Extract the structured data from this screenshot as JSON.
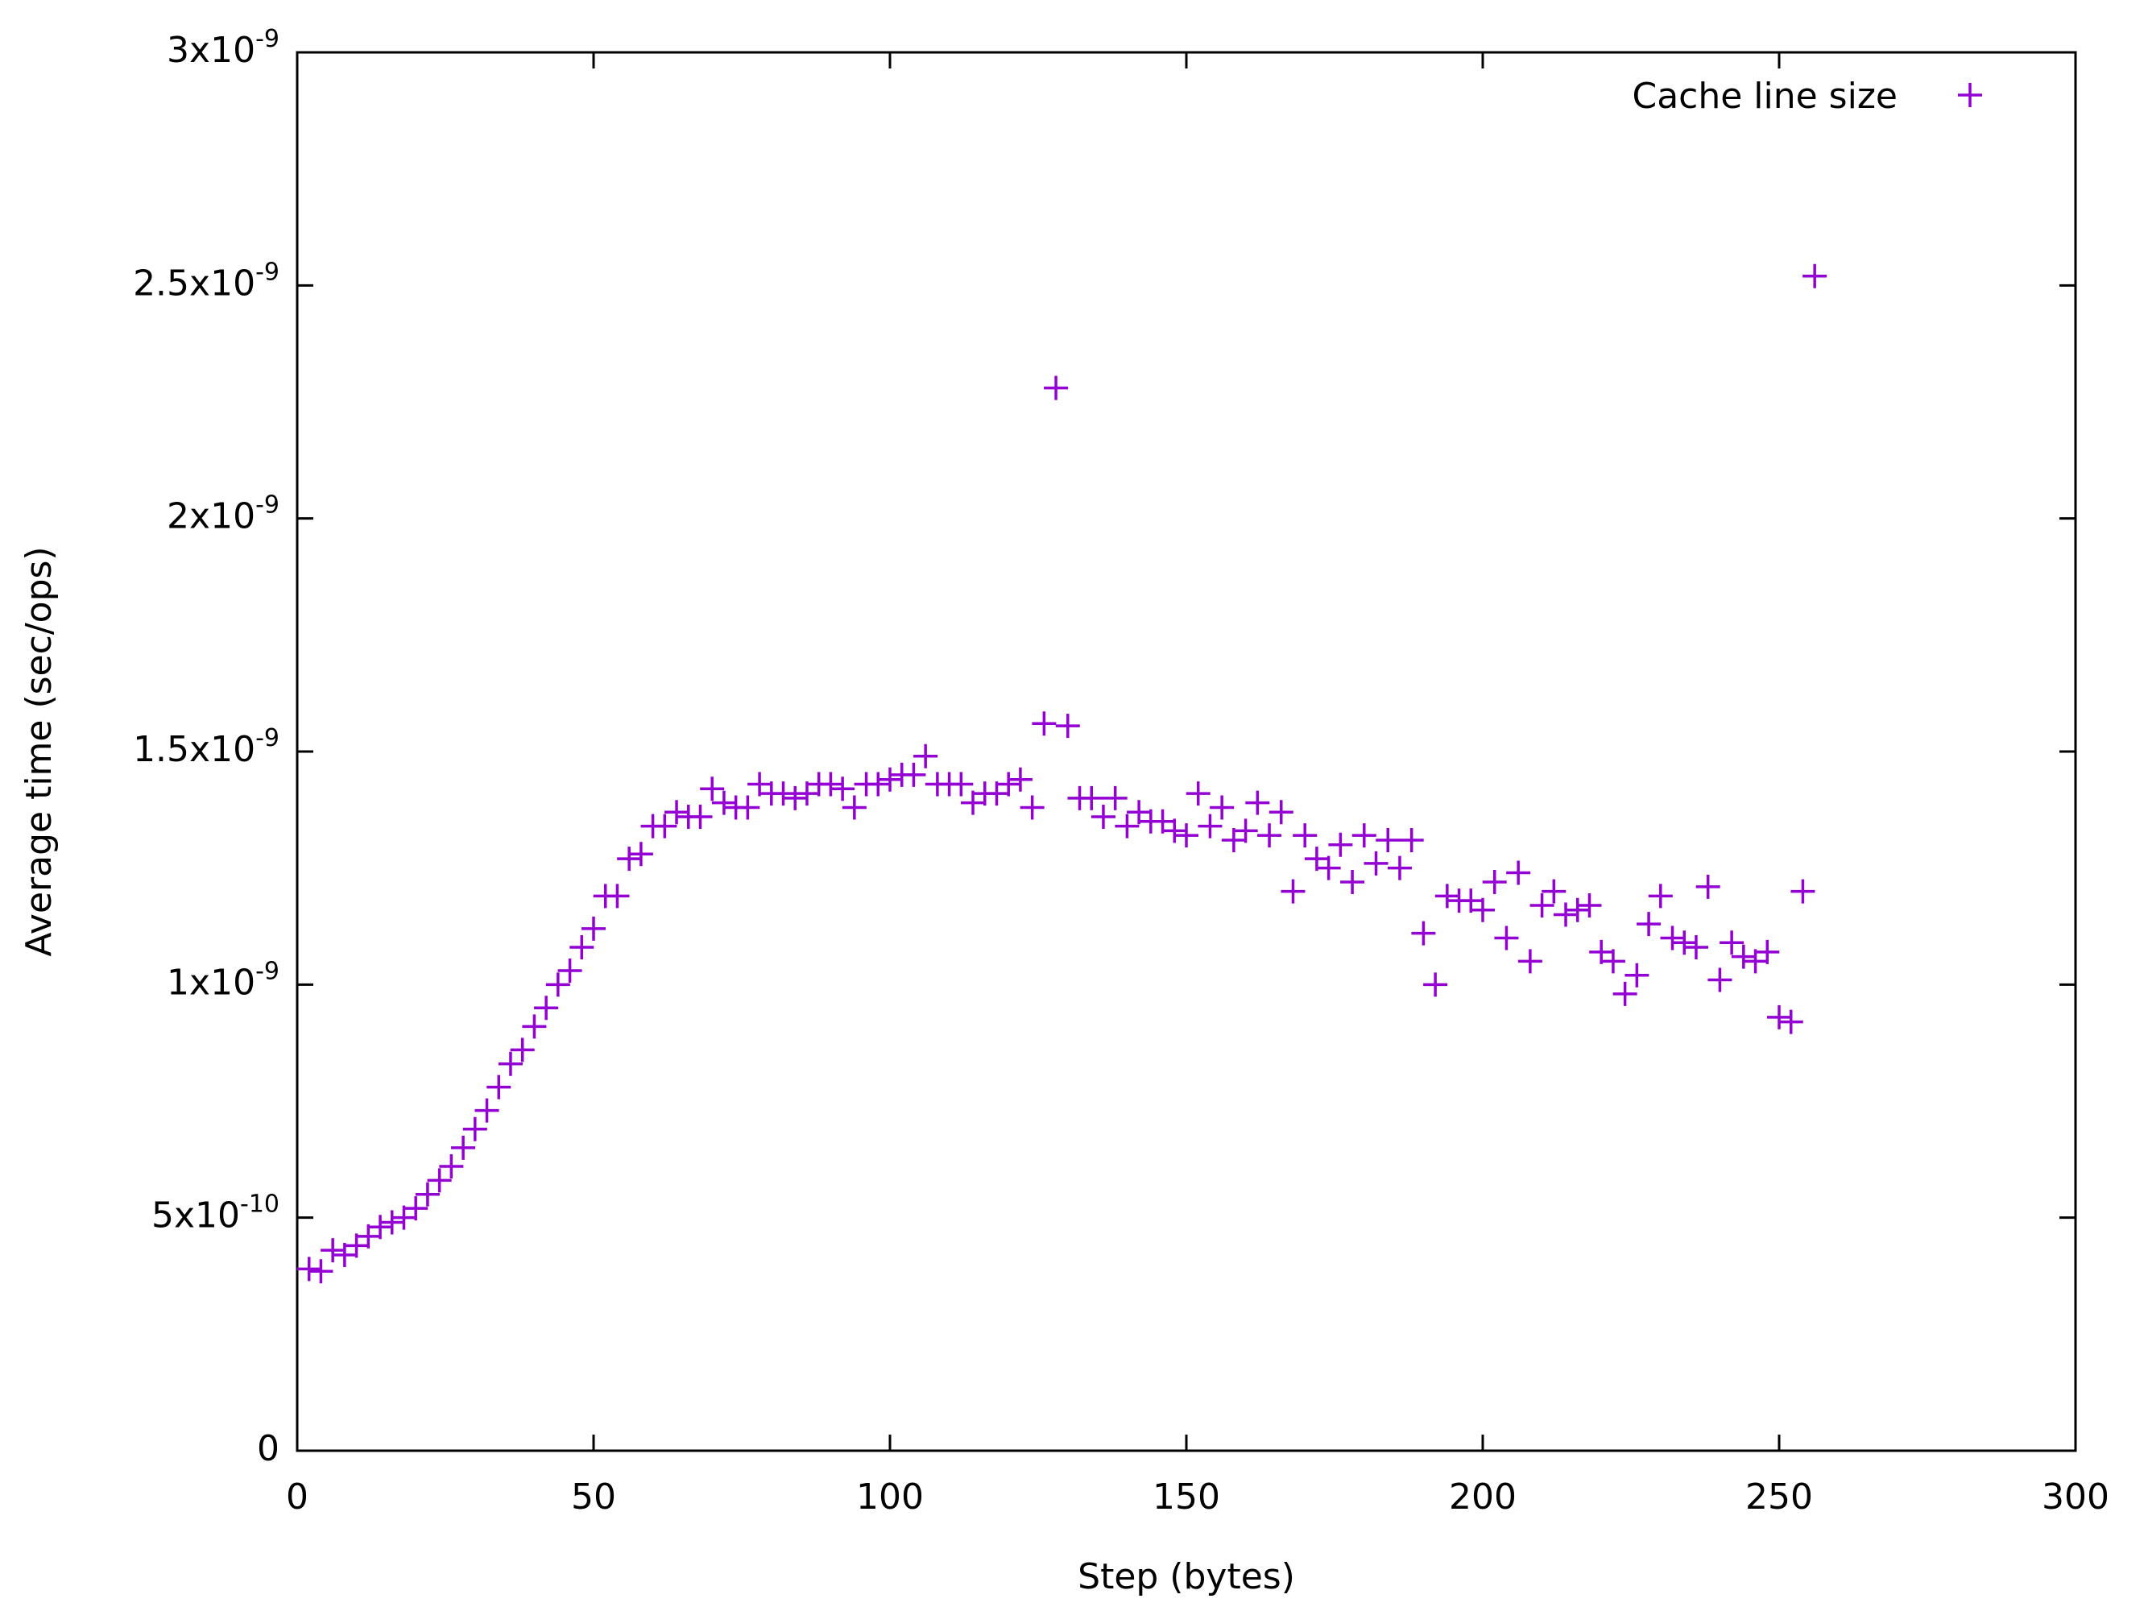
{
  "chart_data": {
    "type": "scatter",
    "x_label": "Step (bytes)",
    "y_label": "Average time (sec/ops)",
    "xlim": [
      0,
      300
    ],
    "xticks": [
      0,
      50,
      100,
      150,
      200,
      250,
      300
    ],
    "ylim": [
      0,
      3e-09
    ],
    "yticks": [
      0,
      {
        "value": 5e-10,
        "label": "5x10-10"
      },
      {
        "value": 1e-09,
        "label": "1x10-9"
      },
      {
        "value": 1.5e-09,
        "label": "1.5x10-9"
      },
      {
        "value": 2e-09,
        "label": "2x10-9"
      },
      {
        "value": 2.5e-09,
        "label": "2.5x10-9"
      },
      {
        "value": 3e-09,
        "label": "3x10-9"
      }
    ],
    "legend_position": "upper right",
    "marker": "+",
    "series": [
      {
        "name": "Cache line size",
        "color": "#9400d3",
        "x": [
          2,
          4,
          6,
          8,
          10,
          12,
          14,
          16,
          18,
          20,
          22,
          24,
          26,
          28,
          30,
          32,
          34,
          36,
          38,
          40,
          42,
          44,
          46,
          48,
          50,
          52,
          54,
          56,
          58,
          60,
          62,
          64,
          66,
          68,
          70,
          72,
          74,
          76,
          78,
          80,
          82,
          84,
          86,
          88,
          90,
          92,
          94,
          96,
          98,
          100,
          102,
          104,
          106,
          108,
          110,
          112,
          114,
          116,
          118,
          120,
          122,
          124,
          126,
          128,
          130,
          132,
          134,
          136,
          138,
          140,
          142,
          144,
          146,
          148,
          150,
          152,
          154,
          156,
          158,
          160,
          162,
          164,
          166,
          168,
          170,
          172,
          174,
          176,
          178,
          180,
          182,
          184,
          186,
          188,
          190,
          192,
          194,
          196,
          198,
          200,
          202,
          204,
          206,
          208,
          210,
          212,
          214,
          216,
          218,
          220,
          222,
          224,
          226,
          228,
          230,
          232,
          234,
          236,
          238,
          240,
          242,
          244,
          246,
          248,
          250,
          252,
          254,
          256
        ],
        "values": [
          3.9e-10,
          3.85e-10,
          4.3e-10,
          4.2e-10,
          4.4e-10,
          4.6e-10,
          4.8e-10,
          4.9e-10,
          5e-10,
          5.2e-10,
          5.5e-10,
          5.8e-10,
          6.1e-10,
          6.5e-10,
          6.9e-10,
          7.3e-10,
          7.8e-10,
          8.3e-10,
          8.6e-10,
          9.1e-10,
          9.5e-10,
          1e-09,
          1.03e-09,
          1.08e-09,
          1.12e-09,
          1.19e-09,
          1.19e-09,
          1.27e-09,
          1.28e-09,
          1.34e-09,
          1.34e-09,
          1.37e-09,
          1.36e-09,
          1.36e-09,
          1.42e-09,
          1.39e-09,
          1.38e-09,
          1.38e-09,
          1.43e-09,
          1.41e-09,
          1.41e-09,
          1.4e-09,
          1.41e-09,
          1.43e-09,
          1.43e-09,
          1.42e-09,
          1.38e-09,
          1.43e-09,
          1.43e-09,
          1.44e-09,
          1.45e-09,
          1.45e-09,
          1.49e-09,
          1.43e-09,
          1.43e-09,
          1.43e-09,
          1.39e-09,
          1.41e-09,
          1.41e-09,
          1.43e-09,
          1.44e-09,
          1.38e-09,
          1.56e-09,
          2.28e-09,
          1.555e-09,
          1.4e-09,
          1.4e-09,
          1.36e-09,
          1.4e-09,
          1.34e-09,
          1.37e-09,
          1.35e-09,
          1.35e-09,
          1.33e-09,
          1.32e-09,
          1.41e-09,
          1.34e-09,
          1.38e-09,
          1.31e-09,
          1.33e-09,
          1.39e-09,
          1.32e-09,
          1.37e-09,
          1.2e-09,
          1.32e-09,
          1.27e-09,
          1.25e-09,
          1.3e-09,
          1.22e-09,
          1.32e-09,
          1.26e-09,
          1.31e-09,
          1.25e-09,
          1.31e-09,
          1.11e-09,
          1e-09,
          1.19e-09,
          1.18e-09,
          1.18e-09,
          1.16e-09,
          1.22e-09,
          1.1e-09,
          1.24e-09,
          1.05e-09,
          1.17e-09,
          1.2e-09,
          1.15e-09,
          1.16e-09,
          1.17e-09,
          1.07e-09,
          1.05e-09,
          9.8e-10,
          1.02e-09,
          1.13e-09,
          1.19e-09,
          1.1e-09,
          1.09e-09,
          1.08e-09,
          1.21e-09,
          1.01e-09,
          1.09e-09,
          1.06e-09,
          1.05e-09,
          1.07e-09,
          9.3e-10,
          9.2e-10,
          1.2e-09,
          2.52e-09
        ]
      }
    ]
  }
}
